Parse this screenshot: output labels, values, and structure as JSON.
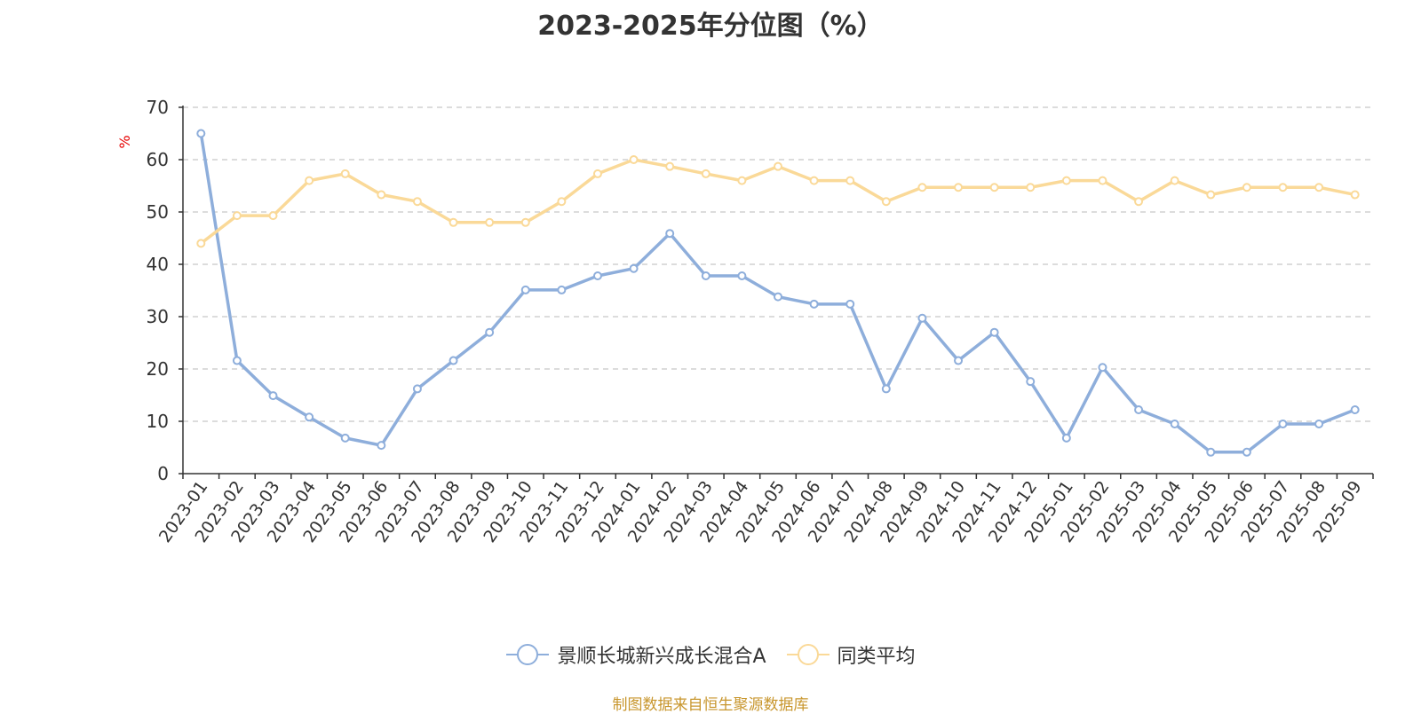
{
  "title": "2023-2025年分位图（%）",
  "source_note": "制图数据来自恒生聚源数据库",
  "colors": {
    "series1": "#8eaedb",
    "series2": "#fad998",
    "grid": "#c8c8c8",
    "axis": "#333333"
  },
  "chart_data": {
    "type": "line",
    "title": "2023-2025年分位图（%）",
    "xlabel": "",
    "ylabel": "%",
    "ylim": [
      0,
      70
    ],
    "yticks": [
      0,
      10,
      20,
      30,
      40,
      50,
      60,
      70
    ],
    "grid": true,
    "legend_position": "bottom-center",
    "categories": [
      "2023-01",
      "2023-02",
      "2023-03",
      "2023-04",
      "2023-05",
      "2023-06",
      "2023-07",
      "2023-08",
      "2023-09",
      "2023-10",
      "2023-11",
      "2023-12",
      "2024-01",
      "2024-02",
      "2024-03",
      "2024-04",
      "2024-05",
      "2024-06",
      "2024-07",
      "2024-08",
      "2024-09",
      "2024-10",
      "2024-11",
      "2024-12",
      "2025-01",
      "2025-02",
      "2025-03",
      "2025-04",
      "2025-05",
      "2025-06",
      "2025-07",
      "2025-08",
      "2025-09"
    ],
    "series": [
      {
        "name": "景顺长城新兴成长混合A",
        "color": "#8eaedb",
        "values": [
          65.0,
          21.6,
          14.9,
          10.8,
          6.8,
          5.4,
          16.2,
          21.6,
          27.0,
          35.1,
          35.1,
          37.8,
          39.2,
          45.9,
          37.8,
          37.8,
          33.8,
          32.4,
          32.4,
          16.2,
          29.7,
          21.6,
          27.0,
          17.6,
          6.8,
          20.3,
          12.2,
          9.5,
          4.1,
          4.1,
          9.5,
          9.5,
          12.2
        ]
      },
      {
        "name": "同类平均",
        "color": "#fad998",
        "values": [
          44.0,
          49.3,
          49.3,
          56.0,
          57.3,
          53.3,
          52.0,
          48.0,
          48.0,
          48.0,
          52.0,
          57.3,
          60.0,
          58.7,
          57.3,
          56.0,
          58.7,
          56.0,
          56.0,
          52.0,
          54.7,
          54.7,
          54.7,
          54.7,
          56.0,
          56.0,
          52.0,
          56.0,
          53.3,
          54.7,
          54.7,
          54.7,
          53.3
        ]
      }
    ]
  }
}
